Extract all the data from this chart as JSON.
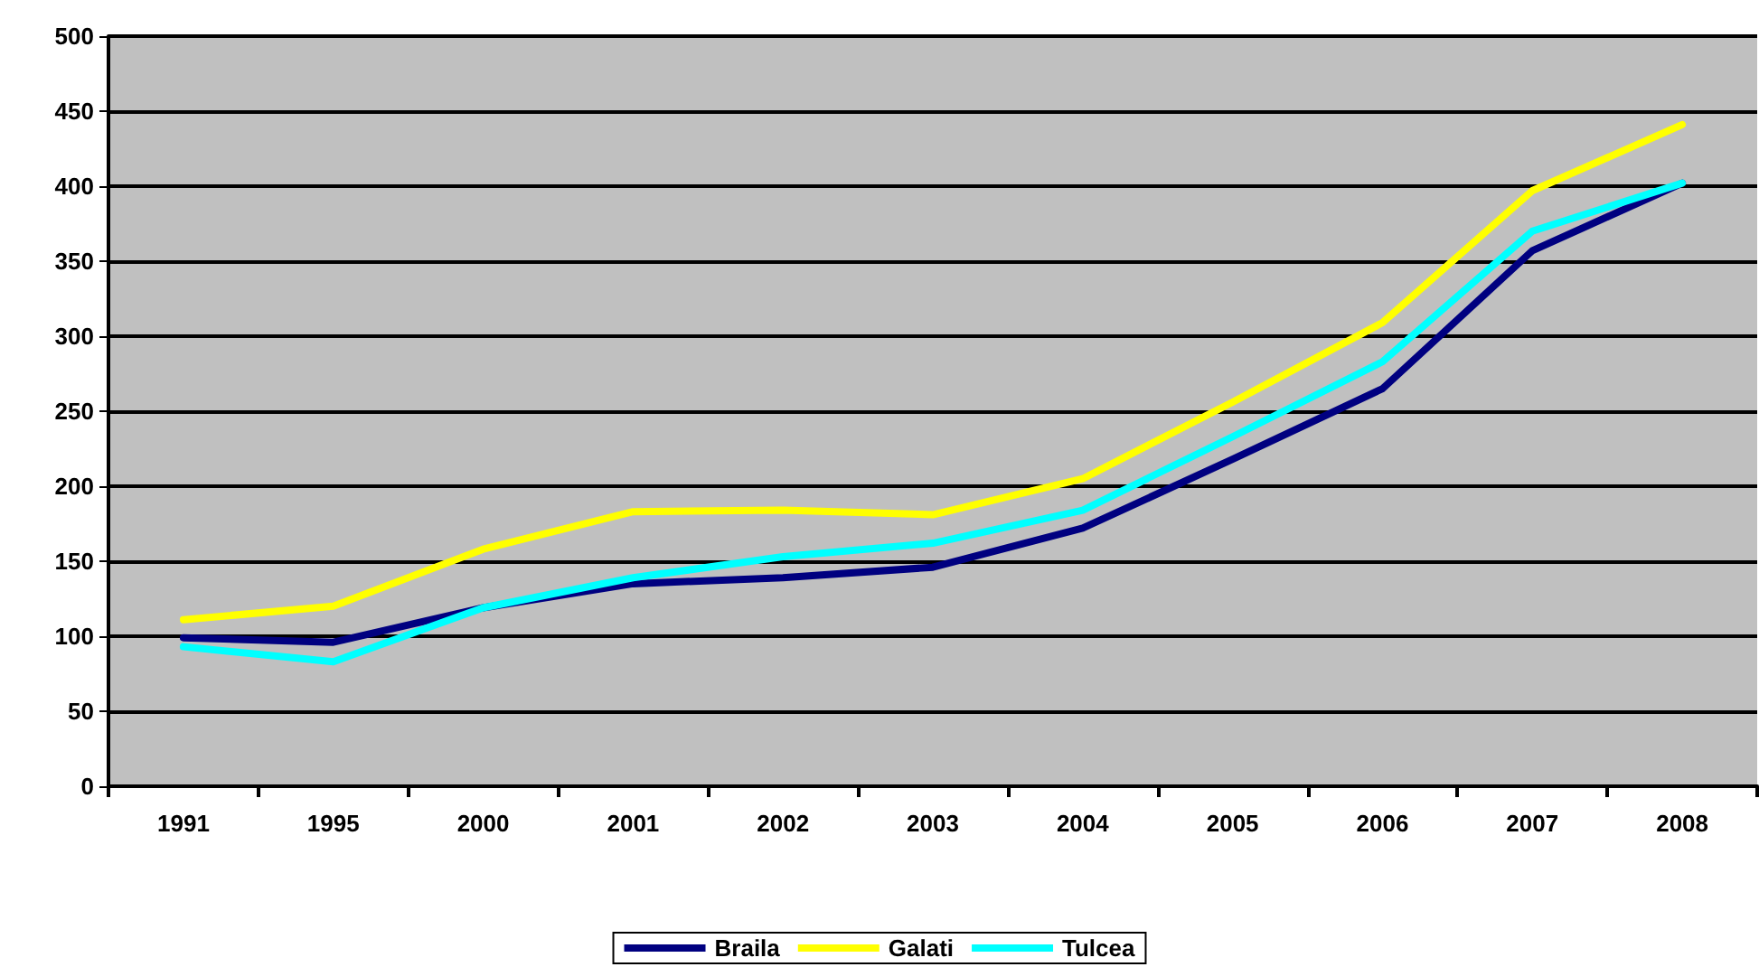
{
  "chart_data": {
    "type": "line",
    "categories": [
      "1991",
      "1995",
      "2000",
      "2001",
      "2002",
      "2003",
      "2004",
      "2005",
      "2006",
      "2007",
      "2008"
    ],
    "series": [
      {
        "name": "Braila",
        "color": "#000080",
        "values": [
          99,
          96,
          119,
          135,
          139,
          146,
          172,
          218,
          265,
          357,
          402
        ]
      },
      {
        "name": "Galati",
        "color": "#ffff00",
        "values": [
          111,
          120,
          158,
          183,
          184,
          181,
          205,
          256,
          309,
          397,
          441
        ]
      },
      {
        "name": "Tulcea",
        "color": "#00ffff",
        "values": [
          93,
          83,
          119,
          139,
          153,
          162,
          184,
          233,
          283,
          370,
          402
        ]
      }
    ],
    "ylim": [
      0,
      500
    ],
    "yticks": [
      0,
      50,
      100,
      150,
      200,
      250,
      300,
      350,
      400,
      450,
      500
    ],
    "grid": "y",
    "legend": "bottom",
    "marker": "none",
    "line_style": "solid"
  }
}
